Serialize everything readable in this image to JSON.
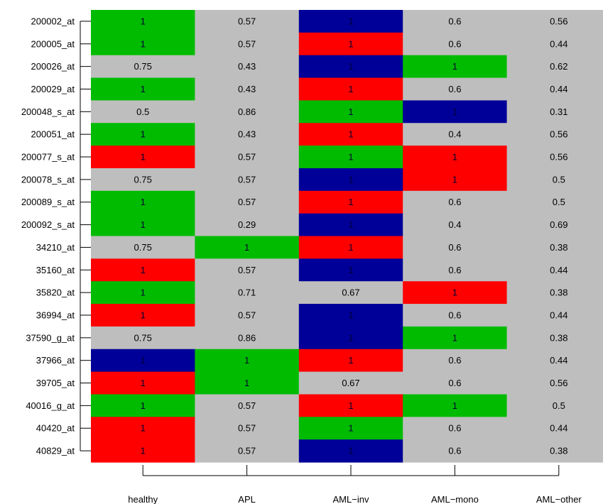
{
  "chart_data": {
    "type": "heatmap",
    "title": "",
    "xlabel": "",
    "ylabel": "",
    "columns": [
      "healthy",
      "APL",
      "AML−inv",
      "AML−mono",
      "AML−other"
    ],
    "rows": [
      "200002_at",
      "200005_at",
      "200026_at",
      "200029_at",
      "200048_s_at",
      "200051_at",
      "200077_s_at",
      "200078_s_at",
      "200089_s_at",
      "200092_s_at",
      "34210_at",
      "35160_at",
      "35820_at",
      "36994_at",
      "37590_g_at",
      "37966_at",
      "39705_at",
      "40016_g_at",
      "40420_at",
      "40829_at"
    ],
    "values": [
      [
        "1",
        "0.57",
        "1",
        "0.6",
        "0.56"
      ],
      [
        "1",
        "0.57",
        "1",
        "0.6",
        "0.44"
      ],
      [
        "0.75",
        "0.43",
        "1",
        "1",
        "0.62"
      ],
      [
        "1",
        "0.43",
        "1",
        "0.6",
        "0.44"
      ],
      [
        "0.5",
        "0.86",
        "1",
        "1",
        "0.31"
      ],
      [
        "1",
        "0.43",
        "1",
        "0.4",
        "0.56"
      ],
      [
        "1",
        "0.57",
        "1",
        "1",
        "0.56"
      ],
      [
        "0.75",
        "0.57",
        "1",
        "1",
        "0.5"
      ],
      [
        "1",
        "0.57",
        "1",
        "0.6",
        "0.5"
      ],
      [
        "1",
        "0.29",
        "1",
        "0.4",
        "0.69"
      ],
      [
        "0.75",
        "1",
        "1",
        "0.6",
        "0.38"
      ],
      [
        "1",
        "0.57",
        "1",
        "0.6",
        "0.44"
      ],
      [
        "1",
        "0.71",
        "0.67",
        "1",
        "0.38"
      ],
      [
        "1",
        "0.57",
        "1",
        "0.6",
        "0.44"
      ],
      [
        "0.75",
        "0.86",
        "1",
        "1",
        "0.38"
      ],
      [
        "1",
        "1",
        "1",
        "0.6",
        "0.44"
      ],
      [
        "1",
        "1",
        "0.67",
        "0.6",
        "0.56"
      ],
      [
        "1",
        "0.57",
        "1",
        "1",
        "0.5"
      ],
      [
        "1",
        "0.57",
        "1",
        "0.6",
        "0.44"
      ],
      [
        "1",
        "0.57",
        "1",
        "0.6",
        "0.38"
      ]
    ],
    "cell_colors": [
      [
        "green",
        "grey",
        "blue",
        "grey",
        "grey"
      ],
      [
        "green",
        "grey",
        "red",
        "grey",
        "grey"
      ],
      [
        "grey",
        "grey",
        "blue",
        "green",
        "grey"
      ],
      [
        "green",
        "grey",
        "red",
        "grey",
        "grey"
      ],
      [
        "grey",
        "grey",
        "green",
        "blue",
        "grey"
      ],
      [
        "green",
        "grey",
        "red",
        "grey",
        "grey"
      ],
      [
        "red",
        "grey",
        "green",
        "red",
        "grey"
      ],
      [
        "grey",
        "grey",
        "blue",
        "red",
        "grey"
      ],
      [
        "green",
        "grey",
        "red",
        "grey",
        "grey"
      ],
      [
        "green",
        "grey",
        "blue",
        "grey",
        "grey"
      ],
      [
        "grey",
        "green",
        "red",
        "grey",
        "grey"
      ],
      [
        "red",
        "grey",
        "blue",
        "grey",
        "grey"
      ],
      [
        "green",
        "grey",
        "grey",
        "red",
        "grey"
      ],
      [
        "red",
        "grey",
        "blue",
        "grey",
        "grey"
      ],
      [
        "grey",
        "grey",
        "blue",
        "green",
        "grey"
      ],
      [
        "blue",
        "green",
        "red",
        "grey",
        "grey"
      ],
      [
        "red",
        "green",
        "grey",
        "grey",
        "grey"
      ],
      [
        "green",
        "grey",
        "red",
        "green",
        "grey"
      ],
      [
        "red",
        "grey",
        "green",
        "grey",
        "grey"
      ],
      [
        "red",
        "grey",
        "blue",
        "grey",
        "grey"
      ]
    ],
    "palette": {
      "green": "#00bb00",
      "red": "#ff0000",
      "blue": "#000099",
      "grey": "#bebebe"
    },
    "grid": false,
    "legend": "none"
  }
}
